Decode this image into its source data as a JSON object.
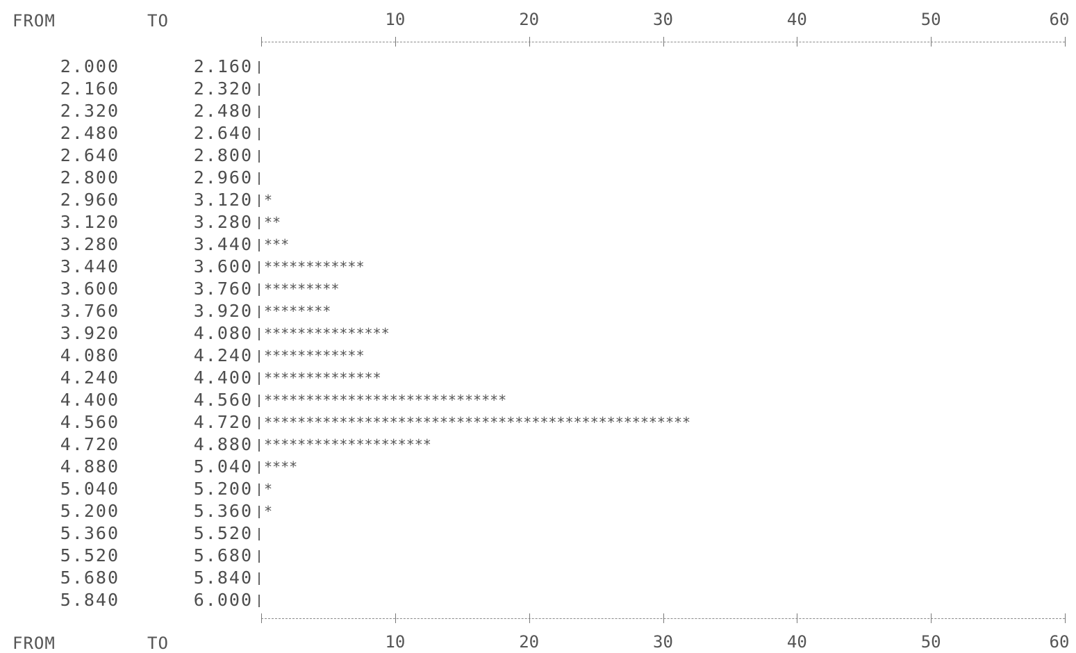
{
  "chart_data": {
    "type": "bar",
    "orientation": "horizontal",
    "column_labels": {
      "from": "FROM",
      "to": "TO"
    },
    "axis_ticks": [
      "10",
      "20",
      "30",
      "40",
      "50",
      "60"
    ],
    "xlim": [
      0,
      60
    ],
    "bar_symbol": "*",
    "rows": [
      {
        "from": "2.000",
        "to": "2.160",
        "count": 0
      },
      {
        "from": "2.160",
        "to": "2.320",
        "count": 0
      },
      {
        "from": "2.320",
        "to": "2.480",
        "count": 0
      },
      {
        "from": "2.480",
        "to": "2.640",
        "count": 0
      },
      {
        "from": "2.640",
        "to": "2.800",
        "count": 0
      },
      {
        "from": "2.800",
        "to": "2.960",
        "count": 0
      },
      {
        "from": "2.960",
        "to": "3.120",
        "count": 1
      },
      {
        "from": "3.120",
        "to": "3.280",
        "count": 2
      },
      {
        "from": "3.280",
        "to": "3.440",
        "count": 3
      },
      {
        "from": "3.440",
        "to": "3.600",
        "count": 12
      },
      {
        "from": "3.600",
        "to": "3.760",
        "count": 9
      },
      {
        "from": "3.760",
        "to": "3.920",
        "count": 8
      },
      {
        "from": "3.920",
        "to": "4.080",
        "count": 15
      },
      {
        "from": "4.080",
        "to": "4.240",
        "count": 12
      },
      {
        "from": "4.240",
        "to": "4.400",
        "count": 14
      },
      {
        "from": "4.400",
        "to": "4.560",
        "count": 29
      },
      {
        "from": "4.560",
        "to": "4.720",
        "count": 51
      },
      {
        "from": "4.720",
        "to": "4.880",
        "count": 20
      },
      {
        "from": "4.880",
        "to": "5.040",
        "count": 4
      },
      {
        "from": "5.040",
        "to": "5.200",
        "count": 1
      },
      {
        "from": "5.200",
        "to": "5.360",
        "count": 1
      },
      {
        "from": "5.360",
        "to": "5.520",
        "count": 0
      },
      {
        "from": "5.520",
        "to": "5.680",
        "count": 0
      },
      {
        "from": "5.680",
        "to": "5.840",
        "count": 0
      },
      {
        "from": "5.840",
        "to": "6.000",
        "count": 0
      }
    ]
  }
}
